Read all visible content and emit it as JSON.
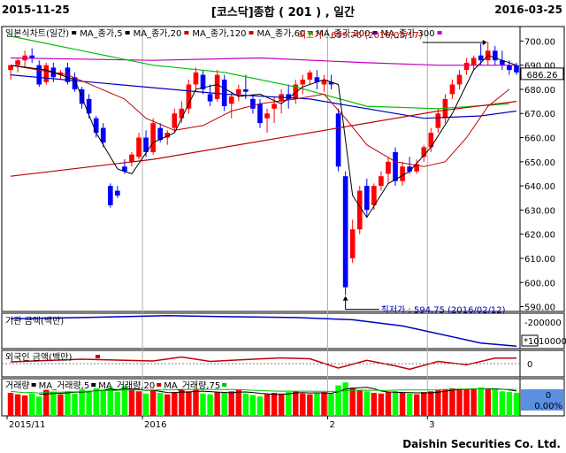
{
  "header": {
    "start_date": "2015-11-25",
    "title": "[코스닥]종합 ( 201 ) , 일간",
    "end_date": "2016-03-25"
  },
  "footer": {
    "company": "Daishin Securities Co. Ltd."
  },
  "colors": {
    "up": "#ff0000",
    "down": "#0000ff",
    "ma5": "#000000",
    "ma20": "#c00000",
    "ma60": "#00c000",
    "ma120": "#c00000",
    "ma200": "#0000c0",
    "ma300": "#c000c0",
    "inst_line": "#0000c0",
    "foreign_line": "#c00000",
    "vol_up": "#ff0000",
    "vol_down": "#00ff00"
  },
  "legend": {
    "main": [
      {
        "label": "일본식차트(일간)",
        "color": "#000000"
      },
      {
        "label": "MA_종가,5",
        "color": "#000000"
      },
      {
        "label": "MA_종가,20",
        "color": "#c00000"
      },
      {
        "label": "MA_종가,120",
        "color": "#c00000"
      },
      {
        "label": "MA_종가,60",
        "color": "#00c000"
      },
      {
        "label": "MA_종가,200",
        "color": "#0000c0"
      },
      {
        "label": "MA_종가,300",
        "color": "#c000c0"
      }
    ],
    "inst": "기관 금액(백만)",
    "foreign": "외국인 금액(백만)",
    "volume": [
      {
        "label": "거래량",
        "color": "#000000"
      },
      {
        "label": "MA_거래량,5",
        "color": "#000000"
      },
      {
        "label": "MA_거래량,20",
        "color": "#c00000"
      },
      {
        "label": "MA_거래량,75",
        "color": "#00c000"
      }
    ]
  },
  "price_axis": {
    "ticks": [
      "700.00",
      "690.00",
      "680.00",
      "670.00",
      "660.00",
      "650.00",
      "640.00",
      "630.00",
      "620.00",
      "610.00",
      "600.00",
      "590.00"
    ],
    "current": "686.26"
  },
  "inst_axis": {
    "ticks": [
      "-200000"
    ],
    "multiplier": "*10",
    "lower": "100000"
  },
  "foreign_axis": {
    "ticks": [
      "0"
    ]
  },
  "volume_axis": {
    "value": "0",
    "percent": "0.00%"
  },
  "x_labels": [
    "2015/11",
    "2016",
    "2",
    "3"
  ],
  "annotations": {
    "high": "최고가 : 699.76 (2016/03/17)",
    "low": "최저가 : 594.75 (2016/02/12)"
  },
  "chart_data": {
    "type": "candlestick",
    "ylim": [
      588,
      706
    ],
    "candles": [
      [
        688,
        690,
        684,
        690
      ],
      [
        690,
        693,
        687,
        692
      ],
      [
        692,
        696,
        689,
        694
      ],
      [
        694,
        697,
        691,
        693
      ],
      [
        690,
        692,
        681,
        682
      ],
      [
        683,
        691,
        682,
        690
      ],
      [
        689,
        691,
        683,
        685
      ],
      [
        686,
        688,
        684,
        687
      ],
      [
        689,
        691,
        682,
        683
      ],
      [
        685,
        687,
        679,
        680
      ],
      [
        680,
        681,
        672,
        674
      ],
      [
        676,
        678,
        668,
        670
      ],
      [
        668,
        669,
        660,
        662
      ],
      [
        664,
        666,
        656,
        658
      ],
      [
        640,
        641,
        631,
        632
      ],
      [
        638,
        640,
        635,
        636
      ],
      [
        648,
        651,
        645,
        646
      ],
      [
        650,
        654,
        648,
        653
      ],
      [
        652,
        662,
        651,
        660
      ],
      [
        660,
        663,
        652,
        654
      ],
      [
        654,
        668,
        653,
        666
      ],
      [
        664,
        666,
        658,
        659
      ],
      [
        660,
        663,
        657,
        662
      ],
      [
        664,
        672,
        662,
        670
      ],
      [
        668,
        675,
        666,
        672
      ],
      [
        672,
        684,
        670,
        682
      ],
      [
        682,
        689,
        679,
        687
      ],
      [
        686,
        688,
        678,
        680
      ],
      [
        678,
        682,
        673,
        675
      ],
      [
        676,
        688,
        675,
        686
      ],
      [
        684,
        686,
        671,
        673
      ],
      [
        674,
        679,
        668,
        677
      ],
      [
        678,
        682,
        675,
        680
      ],
      [
        680,
        686,
        676,
        679
      ],
      [
        676,
        678,
        670,
        672
      ],
      [
        674,
        676,
        664,
        666
      ],
      [
        668,
        672,
        662,
        670
      ],
      [
        672,
        677,
        666,
        674
      ],
      [
        675,
        680,
        670,
        678
      ],
      [
        678,
        682,
        672,
        676
      ],
      [
        676,
        684,
        674,
        682
      ],
      [
        682,
        686,
        678,
        684
      ],
      [
        684,
        688,
        682,
        687
      ],
      [
        685,
        688,
        680,
        683
      ],
      [
        682,
        686,
        679,
        684
      ],
      [
        683,
        686,
        680,
        682
      ],
      [
        670,
        672,
        646,
        648
      ],
      [
        644,
        646,
        594.75,
        598
      ],
      [
        610,
        626,
        608,
        622
      ],
      [
        622,
        640,
        620,
        638
      ],
      [
        640,
        643,
        627,
        630
      ],
      [
        632,
        641,
        630,
        640
      ],
      [
        640,
        646,
        638,
        644
      ],
      [
        645,
        652,
        641,
        650
      ],
      [
        654,
        656,
        640,
        642
      ],
      [
        642,
        650,
        640,
        648
      ],
      [
        648,
        652,
        645,
        646
      ],
      [
        646,
        651,
        645,
        649
      ],
      [
        652,
        657,
        650,
        656
      ],
      [
        656,
        664,
        654,
        662
      ],
      [
        664,
        672,
        662,
        670
      ],
      [
        668,
        678,
        666,
        676
      ],
      [
        678,
        684,
        676,
        682
      ],
      [
        682,
        688,
        680,
        686
      ],
      [
        688,
        693,
        686,
        691
      ],
      [
        690,
        694,
        688,
        693
      ],
      [
        694,
        699,
        690,
        692
      ],
      [
        692,
        699.76,
        690,
        696
      ],
      [
        696,
        698,
        690,
        692
      ],
      [
        692,
        696,
        688,
        690
      ],
      [
        690,
        692,
        686,
        688
      ],
      [
        690,
        691,
        686,
        687
      ]
    ],
    "ma5": [
      [
        0,
        690
      ],
      [
        5,
        688
      ],
      [
        9,
        684
      ],
      [
        12,
        662
      ],
      [
        15,
        647
      ],
      [
        17,
        645
      ],
      [
        20,
        658
      ],
      [
        23,
        662
      ],
      [
        26,
        680
      ],
      [
        29,
        682
      ],
      [
        32,
        677
      ],
      [
        35,
        678
      ],
      [
        38,
        674
      ],
      [
        41,
        681
      ],
      [
        44,
        684
      ],
      [
        46,
        682
      ],
      [
        48,
        636
      ],
      [
        50,
        627
      ],
      [
        53,
        641
      ],
      [
        56,
        646
      ],
      [
        59,
        656
      ],
      [
        62,
        670
      ],
      [
        65,
        688
      ],
      [
        67,
        694
      ],
      [
        69,
        692
      ],
      [
        71,
        690
      ]
    ],
    "ma20": [
      [
        0,
        690
      ],
      [
        8,
        686
      ],
      [
        12,
        681
      ],
      [
        16,
        676
      ],
      [
        19,
        668
      ],
      [
        23,
        663
      ],
      [
        27,
        665
      ],
      [
        31,
        671
      ],
      [
        35,
        674
      ],
      [
        40,
        676
      ],
      [
        44,
        678
      ],
      [
        47,
        668
      ],
      [
        50,
        657
      ],
      [
        54,
        650
      ],
      [
        58,
        648
      ],
      [
        61,
        650
      ],
      [
        64,
        660
      ],
      [
        67,
        673
      ],
      [
        70,
        680
      ]
    ],
    "ma60": [
      [
        0,
        702
      ],
      [
        10,
        696
      ],
      [
        20,
        690
      ],
      [
        30,
        687
      ],
      [
        40,
        681
      ],
      [
        50,
        673
      ],
      [
        60,
        672
      ],
      [
        70,
        674
      ]
    ],
    "ma120": [
      [
        0,
        644
      ],
      [
        20,
        651
      ],
      [
        40,
        661
      ],
      [
        60,
        671
      ],
      [
        71,
        675
      ]
    ],
    "ma200": [
      [
        0,
        686
      ],
      [
        15,
        682
      ],
      [
        30,
        678
      ],
      [
        42,
        676
      ],
      [
        50,
        672
      ],
      [
        58,
        668
      ],
      [
        66,
        669
      ],
      [
        71,
        671
      ]
    ],
    "ma300": [
      [
        0,
        693
      ],
      [
        20,
        692
      ],
      [
        35,
        693
      ],
      [
        50,
        691
      ],
      [
        60,
        690
      ],
      [
        71,
        690
      ]
    ],
    "inst_flow": [
      [
        0,
        -188
      ],
      [
        10,
        -192
      ],
      [
        22,
        -198
      ],
      [
        30,
        -195
      ],
      [
        40,
        -192
      ],
      [
        48,
        -185
      ],
      [
        55,
        -165
      ],
      [
        62,
        -130
      ],
      [
        66,
        -110
      ],
      [
        71,
        -100
      ]
    ],
    "inst_ylim": [
      -92,
      -206
    ],
    "foreign_flow": [
      [
        0,
        8
      ],
      [
        10,
        20
      ],
      [
        20,
        12
      ],
      [
        24,
        30
      ],
      [
        28,
        10
      ],
      [
        34,
        20
      ],
      [
        38,
        26
      ],
      [
        42,
        22
      ],
      [
        46,
        -20
      ],
      [
        50,
        15
      ],
      [
        54,
        -10
      ],
      [
        56,
        -25
      ],
      [
        60,
        10
      ],
      [
        64,
        -5
      ],
      [
        68,
        25
      ],
      [
        71,
        25
      ]
    ],
    "foreign_ylim": [
      -60,
      60
    ],
    "volume": [
      62,
      58,
      55,
      60,
      52,
      70,
      64,
      58,
      66,
      60,
      72,
      68,
      74,
      70,
      76,
      64,
      80,
      72,
      66,
      60,
      68,
      62,
      58,
      64,
      70,
      66,
      72,
      60,
      58,
      64,
      62,
      66,
      70,
      60,
      56,
      52,
      58,
      62,
      60,
      64,
      66,
      60,
      58,
      62,
      64,
      60,
      82,
      90,
      76,
      70,
      66,
      62,
      60,
      64,
      66,
      62,
      60,
      58,
      64,
      66,
      70,
      72,
      74,
      70,
      72,
      74,
      76,
      72,
      70,
      66,
      64,
      62
    ],
    "volume_ylim": [
      0,
      100
    ]
  }
}
